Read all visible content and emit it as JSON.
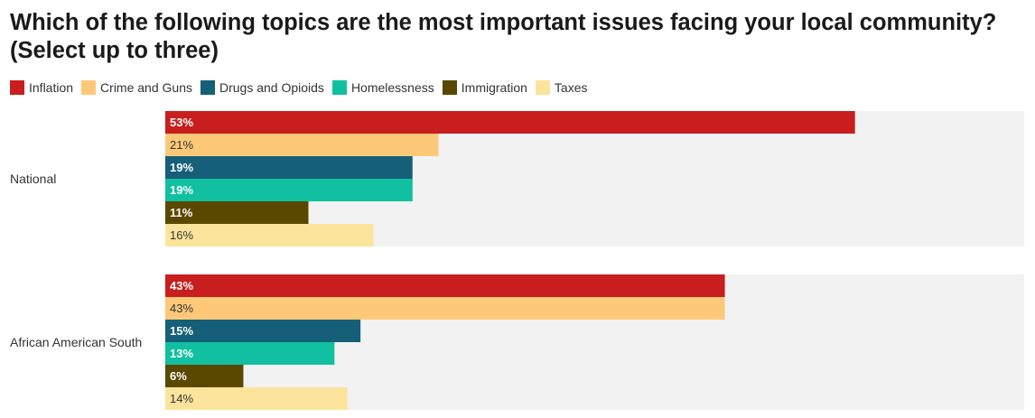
{
  "chart_data": {
    "type": "bar",
    "orientation": "horizontal",
    "title": "Which of the following topics are the most important issues facing your local community? (Select up to three)",
    "categories": [
      "National",
      "African American South"
    ],
    "series": [
      {
        "name": "Inflation",
        "color": "#c81e1e",
        "label_color": "#ffffff",
        "label_weight": "bold",
        "values": [
          53,
          43
        ]
      },
      {
        "name": "Crime and Guns",
        "color": "#fdc978",
        "label_color": "#333333",
        "label_weight": "normal",
        "values": [
          21,
          43
        ]
      },
      {
        "name": "Drugs and Opioids",
        "color": "#155f79",
        "label_color": "#ffffff",
        "label_weight": "bold",
        "values": [
          19,
          15
        ]
      },
      {
        "name": "Homelessness",
        "color": "#10c0a0",
        "label_color": "#ffffff",
        "label_weight": "bold",
        "values": [
          19,
          13
        ]
      },
      {
        "name": "Immigration",
        "color": "#5b4800",
        "label_color": "#ffffff",
        "label_weight": "bold",
        "values": [
          11,
          6
        ]
      },
      {
        "name": "Taxes",
        "color": "#fde49c",
        "label_color": "#333333",
        "label_weight": "normal",
        "values": [
          16,
          14
        ]
      }
    ],
    "value_suffix": "%",
    "xlim": [
      0,
      66
    ],
    "legend_position": "top-left",
    "track_color": "#f2f2f2"
  }
}
